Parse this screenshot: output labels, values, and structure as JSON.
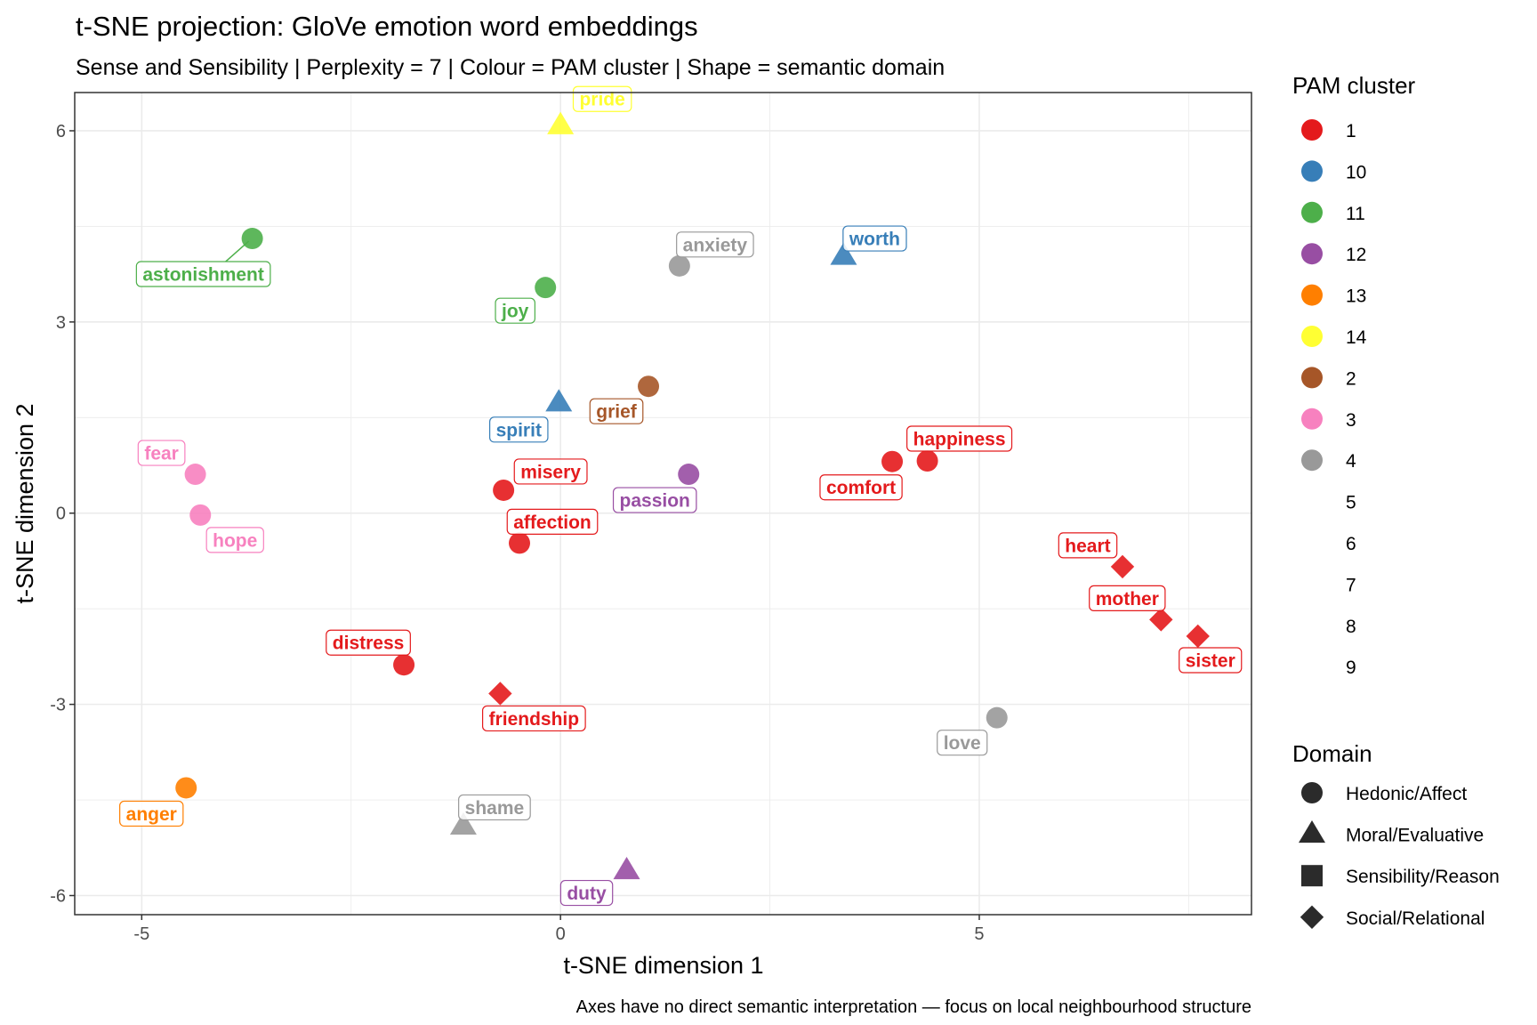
{
  "chart_data": {
    "type": "scatter",
    "title": "t-SNE projection: GloVe emotion word embeddings",
    "subtitle": "Sense and Sensibility | Perplexity = 7 | Colour = PAM cluster | Shape = semantic domain",
    "xlabel": "t-SNE dimension 1",
    "ylabel": "t-SNE dimension 2",
    "caption": "Axes have no direct semantic interpretation — focus on local neighbourhood structure",
    "xlim": [
      -5.8,
      8.25
    ],
    "ylim": [
      -6.3,
      6.6
    ],
    "x_ticks": [
      -5,
      0,
      5
    ],
    "y_ticks": [
      -6,
      -3,
      0,
      3,
      6
    ],
    "x_tick_labels": [
      "-5",
      "0",
      "5"
    ],
    "y_tick_labels": [
      "-6",
      "-3",
      "0",
      "3",
      "6"
    ],
    "grid": true,
    "legend_position": "right",
    "cluster_legend": {
      "title": "PAM cluster",
      "items": [
        {
          "label": "1",
          "color": "#E41A1C"
        },
        {
          "label": "10",
          "color": "#377EB8"
        },
        {
          "label": "11",
          "color": "#4DAF4A"
        },
        {
          "label": "12",
          "color": "#984EA3"
        },
        {
          "label": "13",
          "color": "#FF7F00"
        },
        {
          "label": "14",
          "color": "#FFFF33"
        },
        {
          "label": "2",
          "color": "#A65628"
        },
        {
          "label": "3",
          "color": "#F781BF"
        },
        {
          "label": "4",
          "color": "#999999"
        },
        {
          "label": "5",
          "color": "#FFFFFF"
        },
        {
          "label": "6",
          "color": "#FFFFFF"
        },
        {
          "label": "7",
          "color": "#FFFFFF"
        },
        {
          "label": "8",
          "color": "#FFFFFF"
        },
        {
          "label": "9",
          "color": "#FFFFFF"
        }
      ]
    },
    "domain_legend": {
      "title": "Domain",
      "items": [
        {
          "label": "Hedonic/Affect",
          "shape": "circle"
        },
        {
          "label": "Moral/Evaluative",
          "shape": "triangle"
        },
        {
          "label": "Sensibility/Reason",
          "shape": "square"
        },
        {
          "label": "Social/Relational",
          "shape": "diamond"
        }
      ]
    },
    "points": [
      {
        "word": "pride",
        "x": 0.0,
        "y": 6.08,
        "cluster": "14",
        "domain": "Moral/Evaluative"
      },
      {
        "word": "astonishment",
        "x": -3.68,
        "y": 4.31,
        "cluster": "11",
        "domain": "Hedonic/Affect"
      },
      {
        "word": "anxiety",
        "x": 1.42,
        "y": 3.88,
        "cluster": "4",
        "domain": "Hedonic/Affect"
      },
      {
        "word": "worth",
        "x": 3.38,
        "y": 4.03,
        "cluster": "10",
        "domain": "Moral/Evaluative"
      },
      {
        "word": "joy",
        "x": -0.18,
        "y": 3.54,
        "cluster": "11",
        "domain": "Hedonic/Affect"
      },
      {
        "word": "spirit",
        "x": -0.02,
        "y": 1.73,
        "cluster": "10",
        "domain": "Moral/Evaluative"
      },
      {
        "word": "grief",
        "x": 1.05,
        "y": 1.99,
        "cluster": "2",
        "domain": "Hedonic/Affect"
      },
      {
        "word": "happiness",
        "x": 4.38,
        "y": 0.82,
        "cluster": "1",
        "domain": "Hedonic/Affect"
      },
      {
        "word": "comfort",
        "x": 3.96,
        "y": 0.81,
        "cluster": "1",
        "domain": "Hedonic/Affect"
      },
      {
        "word": "fear",
        "x": -4.36,
        "y": 0.61,
        "cluster": "3",
        "domain": "Hedonic/Affect"
      },
      {
        "word": "hope",
        "x": -4.3,
        "y": -0.03,
        "cluster": "3",
        "domain": "Hedonic/Affect"
      },
      {
        "word": "misery",
        "x": -0.68,
        "y": 0.36,
        "cluster": "1",
        "domain": "Hedonic/Affect"
      },
      {
        "word": "passion",
        "x": 1.53,
        "y": 0.61,
        "cluster": "12",
        "domain": "Hedonic/Affect"
      },
      {
        "word": "affection",
        "x": -0.49,
        "y": -0.47,
        "cluster": "1",
        "domain": "Hedonic/Affect"
      },
      {
        "word": "heart",
        "x": 6.71,
        "y": -0.84,
        "cluster": "1",
        "domain": "Social/Relational"
      },
      {
        "word": "mother",
        "x": 7.17,
        "y": -1.67,
        "cluster": "1",
        "domain": "Social/Relational"
      },
      {
        "word": "sister",
        "x": 7.61,
        "y": -1.93,
        "cluster": "1",
        "domain": "Social/Relational"
      },
      {
        "word": "distress",
        "x": -1.87,
        "y": -2.38,
        "cluster": "1",
        "domain": "Hedonic/Affect"
      },
      {
        "word": "friendship",
        "x": -0.72,
        "y": -2.83,
        "cluster": "1",
        "domain": "Social/Relational"
      },
      {
        "word": "love",
        "x": 5.21,
        "y": -3.21,
        "cluster": "4",
        "domain": "Hedonic/Affect"
      },
      {
        "word": "anger",
        "x": -4.47,
        "y": -4.31,
        "cluster": "13",
        "domain": "Hedonic/Affect"
      },
      {
        "word": "shame",
        "x": -1.16,
        "y": -4.91,
        "cluster": "4",
        "domain": "Moral/Evaluative"
      },
      {
        "word": "duty",
        "x": 0.79,
        "y": -5.61,
        "cluster": "12",
        "domain": "Moral/Evaluative"
      }
    ]
  }
}
